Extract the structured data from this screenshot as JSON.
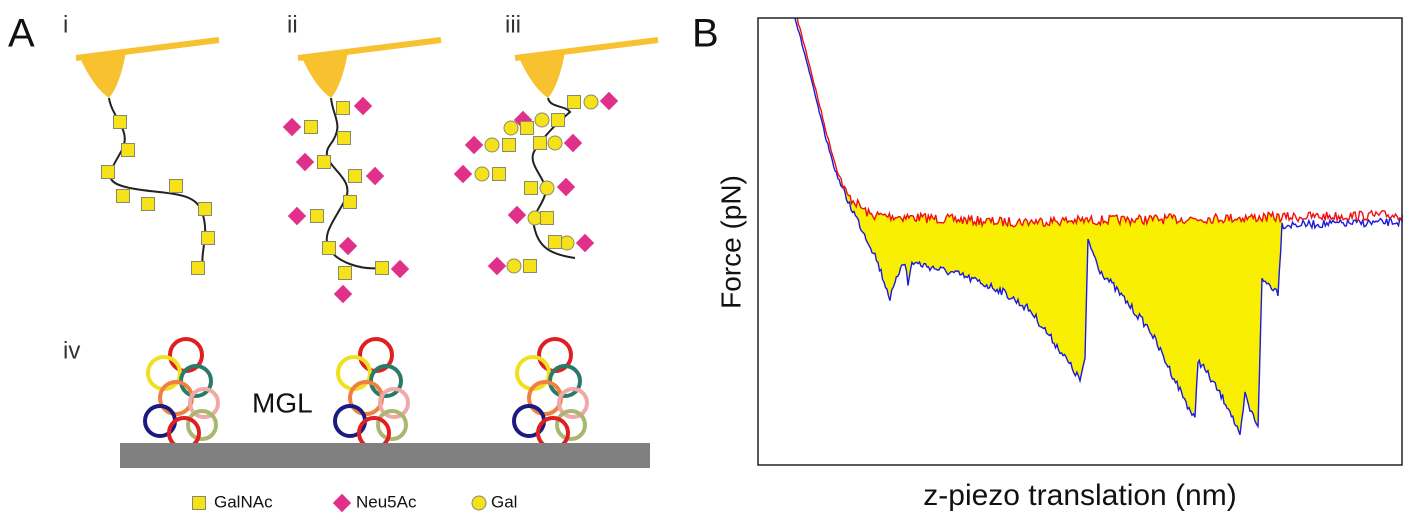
{
  "panel_a": {
    "label": "A",
    "subpanels": [
      "i",
      "ii",
      "iii",
      "iv"
    ],
    "mgl_label": "MGL",
    "legend": [
      "GalNAc",
      "Neu5Ac",
      "Gal"
    ]
  },
  "panel_b": {
    "label": "B",
    "y_axis_label": "Force (pN)",
    "x_axis_label": "z-piezo translation (nm)"
  }
}
